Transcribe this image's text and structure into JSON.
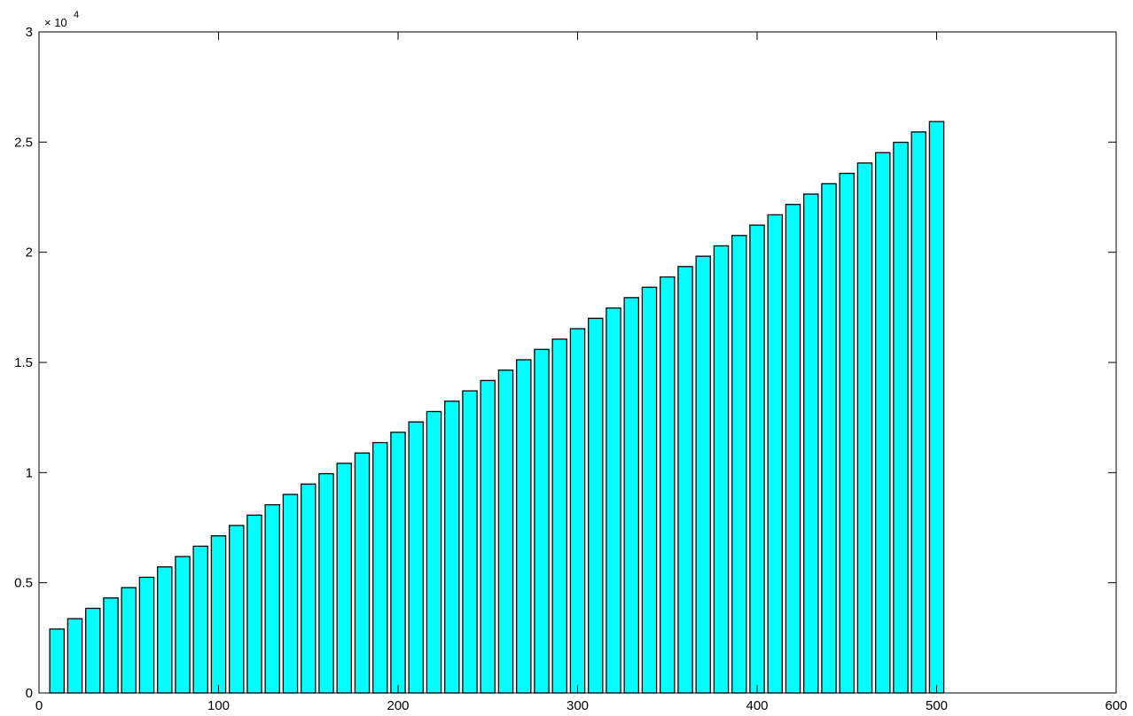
{
  "chart_data": {
    "type": "bar",
    "title": "",
    "xlabel": "",
    "ylabel": "",
    "xlim": [
      0,
      600
    ],
    "ylim": [
      0,
      30000
    ],
    "x_ticks": [
      0,
      100,
      200,
      300,
      400,
      500,
      600
    ],
    "y_ticks": [
      0,
      5000,
      10000,
      15000,
      20000,
      25000,
      30000
    ],
    "x_tick_labels": [
      "0",
      "100",
      "200",
      "300",
      "400",
      "500",
      "600"
    ],
    "y_tick_labels": [
      "0",
      "0.5",
      "1",
      "1.5",
      "2",
      "2.5",
      "3"
    ],
    "y_exponent_label": "× 10",
    "y_exponent_power": "4",
    "grid": false,
    "bar_color": "#00ffff",
    "edge_color": "#000000",
    "x": [
      10,
      20,
      30,
      40,
      50,
      60,
      70,
      80,
      90,
      100,
      110,
      120,
      130,
      140,
      150,
      160,
      170,
      180,
      190,
      200,
      210,
      220,
      230,
      240,
      250,
      260,
      270,
      280,
      290,
      300,
      310,
      320,
      330,
      340,
      350,
      360,
      370,
      380,
      390,
      400,
      410,
      420,
      430,
      440,
      450,
      460,
      470,
      480,
      490,
      500
    ],
    "values": [
      2900,
      3370,
      3840,
      4310,
      4780,
      5250,
      5720,
      6190,
      6660,
      7130,
      7600,
      8070,
      8540,
      9010,
      9480,
      9950,
      10420,
      10890,
      11360,
      11830,
      12300,
      12770,
      13240,
      13710,
      14180,
      14650,
      15120,
      15590,
      16060,
      16530,
      17000,
      17470,
      17940,
      18410,
      18880,
      19350,
      19820,
      20290,
      20760,
      21230,
      21700,
      22170,
      22640,
      23110,
      23580,
      24050,
      24520,
      24990,
      25460,
      25930
    ]
  }
}
